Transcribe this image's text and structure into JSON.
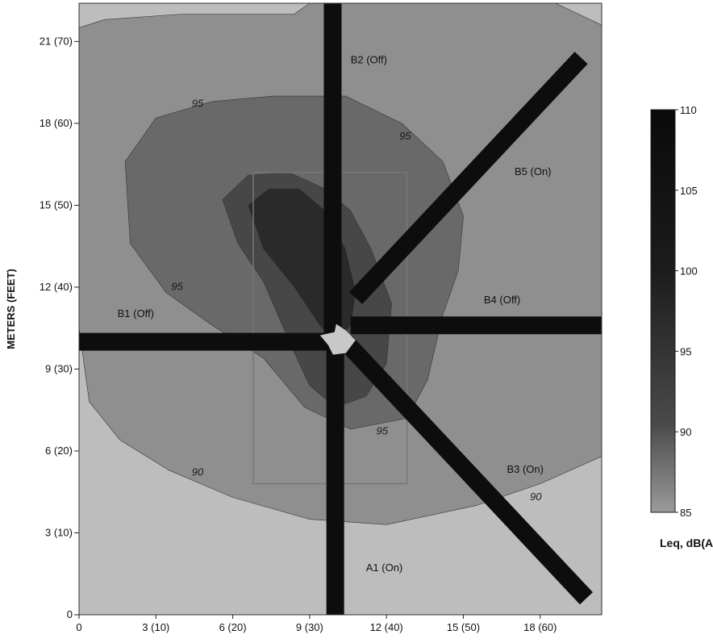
{
  "chart_data": {
    "type": "heatmap",
    "ylabel": "METERS (FEET)",
    "xlim": [
      0,
      20.4
    ],
    "ylim": [
      0,
      22.4
    ],
    "x_ticks": [
      {
        "value": 0,
        "label": "0"
      },
      {
        "value": 3,
        "label": "3 (10)"
      },
      {
        "value": 6,
        "label": "6 (20)"
      },
      {
        "value": 9,
        "label": "9 (30)"
      },
      {
        "value": 12,
        "label": "12 (40)"
      },
      {
        "value": 15,
        "label": "15 (50)"
      },
      {
        "value": 18,
        "label": "18 (60)"
      }
    ],
    "y_ticks": [
      {
        "value": 0,
        "label": "0"
      },
      {
        "value": 3,
        "label": "3 (10)"
      },
      {
        "value": 6,
        "label": "6 (20)"
      },
      {
        "value": 9,
        "label": "9 (30)"
      },
      {
        "value": 12,
        "label": "12 (40)"
      },
      {
        "value": 15,
        "label": "15 (50)"
      },
      {
        "value": 18,
        "label": "18 (60)"
      },
      {
        "value": 21,
        "label": "21 (70)"
      }
    ],
    "colorbar": {
      "title": "Leq, dB(A)",
      "min": 85,
      "max": 110,
      "ticks": [
        {
          "value": 110,
          "label": "110"
        },
        {
          "value": 105,
          "label": "105"
        },
        {
          "value": 100,
          "label": "100"
        },
        {
          "value": 95,
          "label": "95"
        },
        {
          "value": 90,
          "label": "90"
        },
        {
          "value": 85,
          "label": "85"
        }
      ]
    },
    "contour_levels": [
      {
        "level": 85,
        "color": "#bdbdbd"
      },
      {
        "level": 90,
        "color": "#8f8f8f"
      },
      {
        "level": 95,
        "color": "#696969"
      },
      {
        "level": 100,
        "color": "#474747"
      },
      {
        "level": 105,
        "color": "#2a2a2a"
      }
    ],
    "contour_labels": [
      {
        "label": "90",
        "x": 4.4,
        "y": 5.1
      },
      {
        "label": "90",
        "x": 17.6,
        "y": 4.2
      },
      {
        "label": "95",
        "x": 4.4,
        "y": 18.6
      },
      {
        "label": "95",
        "x": 3.6,
        "y": 11.9
      },
      {
        "label": "95",
        "x": 12.5,
        "y": 17.4
      },
      {
        "label": "95",
        "x": 11.6,
        "y": 6.6
      }
    ],
    "arms": [
      {
        "label": "A1 (On)",
        "x1": 10.0,
        "y1": 0,
        "x2": 10.0,
        "y2": 10.0,
        "label_x": 11.2,
        "label_y": 1.6
      },
      {
        "label": "B1 (Off)",
        "x1": 0,
        "y1": 10.0,
        "x2": 9.8,
        "y2": 10.0,
        "label_x": 1.5,
        "label_y": 10.9
      },
      {
        "label": "B2 (Off)",
        "x1": 9.9,
        "y1": 10.2,
        "x2": 9.9,
        "y2": 22.4,
        "label_x": 10.6,
        "label_y": 20.2
      },
      {
        "label": "B3 (On)",
        "x1": 10.4,
        "y1": 10.0,
        "x2": 19.8,
        "y2": 0.6,
        "label_x": 16.7,
        "label_y": 5.2
      },
      {
        "label": "B4 (Off)",
        "x1": 10.6,
        "y1": 10.6,
        "x2": 20.4,
        "y2": 10.6,
        "label_x": 15.8,
        "label_y": 11.4
      },
      {
        "label": "B5 (On)",
        "x1": 10.8,
        "y1": 11.6,
        "x2": 19.6,
        "y2": 20.4,
        "label_x": 17.0,
        "label_y": 16.1
      }
    ],
    "source_box": {
      "x1": 6.8,
      "y1": 4.8,
      "x2": 12.8,
      "y2": 16.2
    },
    "grid": false,
    "legend": "colorbar-right"
  }
}
